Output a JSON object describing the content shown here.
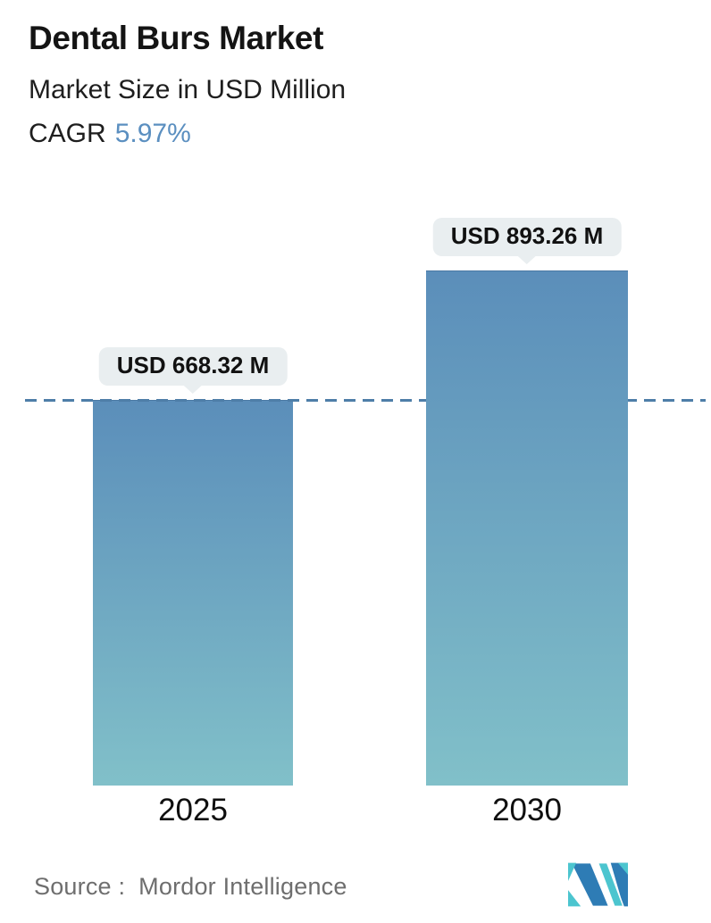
{
  "header": {
    "title": "Dental Burs Market",
    "subtitle": "Market Size in USD Million",
    "cagr_label": "CAGR",
    "cagr_value": "5.97%",
    "cagr_color": "#5b8fc0"
  },
  "chart_data": {
    "type": "bar",
    "title": "Dental Burs Market",
    "subtitle": "Market Size in USD Million",
    "unit": "USD Million",
    "cagr_percent": 5.97,
    "categories": [
      "2025",
      "2030"
    ],
    "values": [
      668.32,
      893.26
    ],
    "value_labels": [
      "USD 668.32 M",
      "USD 893.26 M"
    ],
    "baseline_value": 0,
    "axes_visible": false,
    "grid": false,
    "legend": false,
    "reference_line": {
      "style": "dashed",
      "at_value": 668.32,
      "color": "#4e7ea8",
      "spans_full_width": true
    },
    "bar_gradient_top": "#5b8eba",
    "bar_gradient_bottom": "#81c0c9",
    "label_bubble_bg": "#e9eef0"
  },
  "footer": {
    "source_label": "Source :",
    "source_value": "Mordor Intelligence",
    "source_color": "#6e6e6e",
    "logo": {
      "name": "mordor-intelligence-logo",
      "blue": "#2e7cb5",
      "teal": "#4cc5cf"
    }
  }
}
